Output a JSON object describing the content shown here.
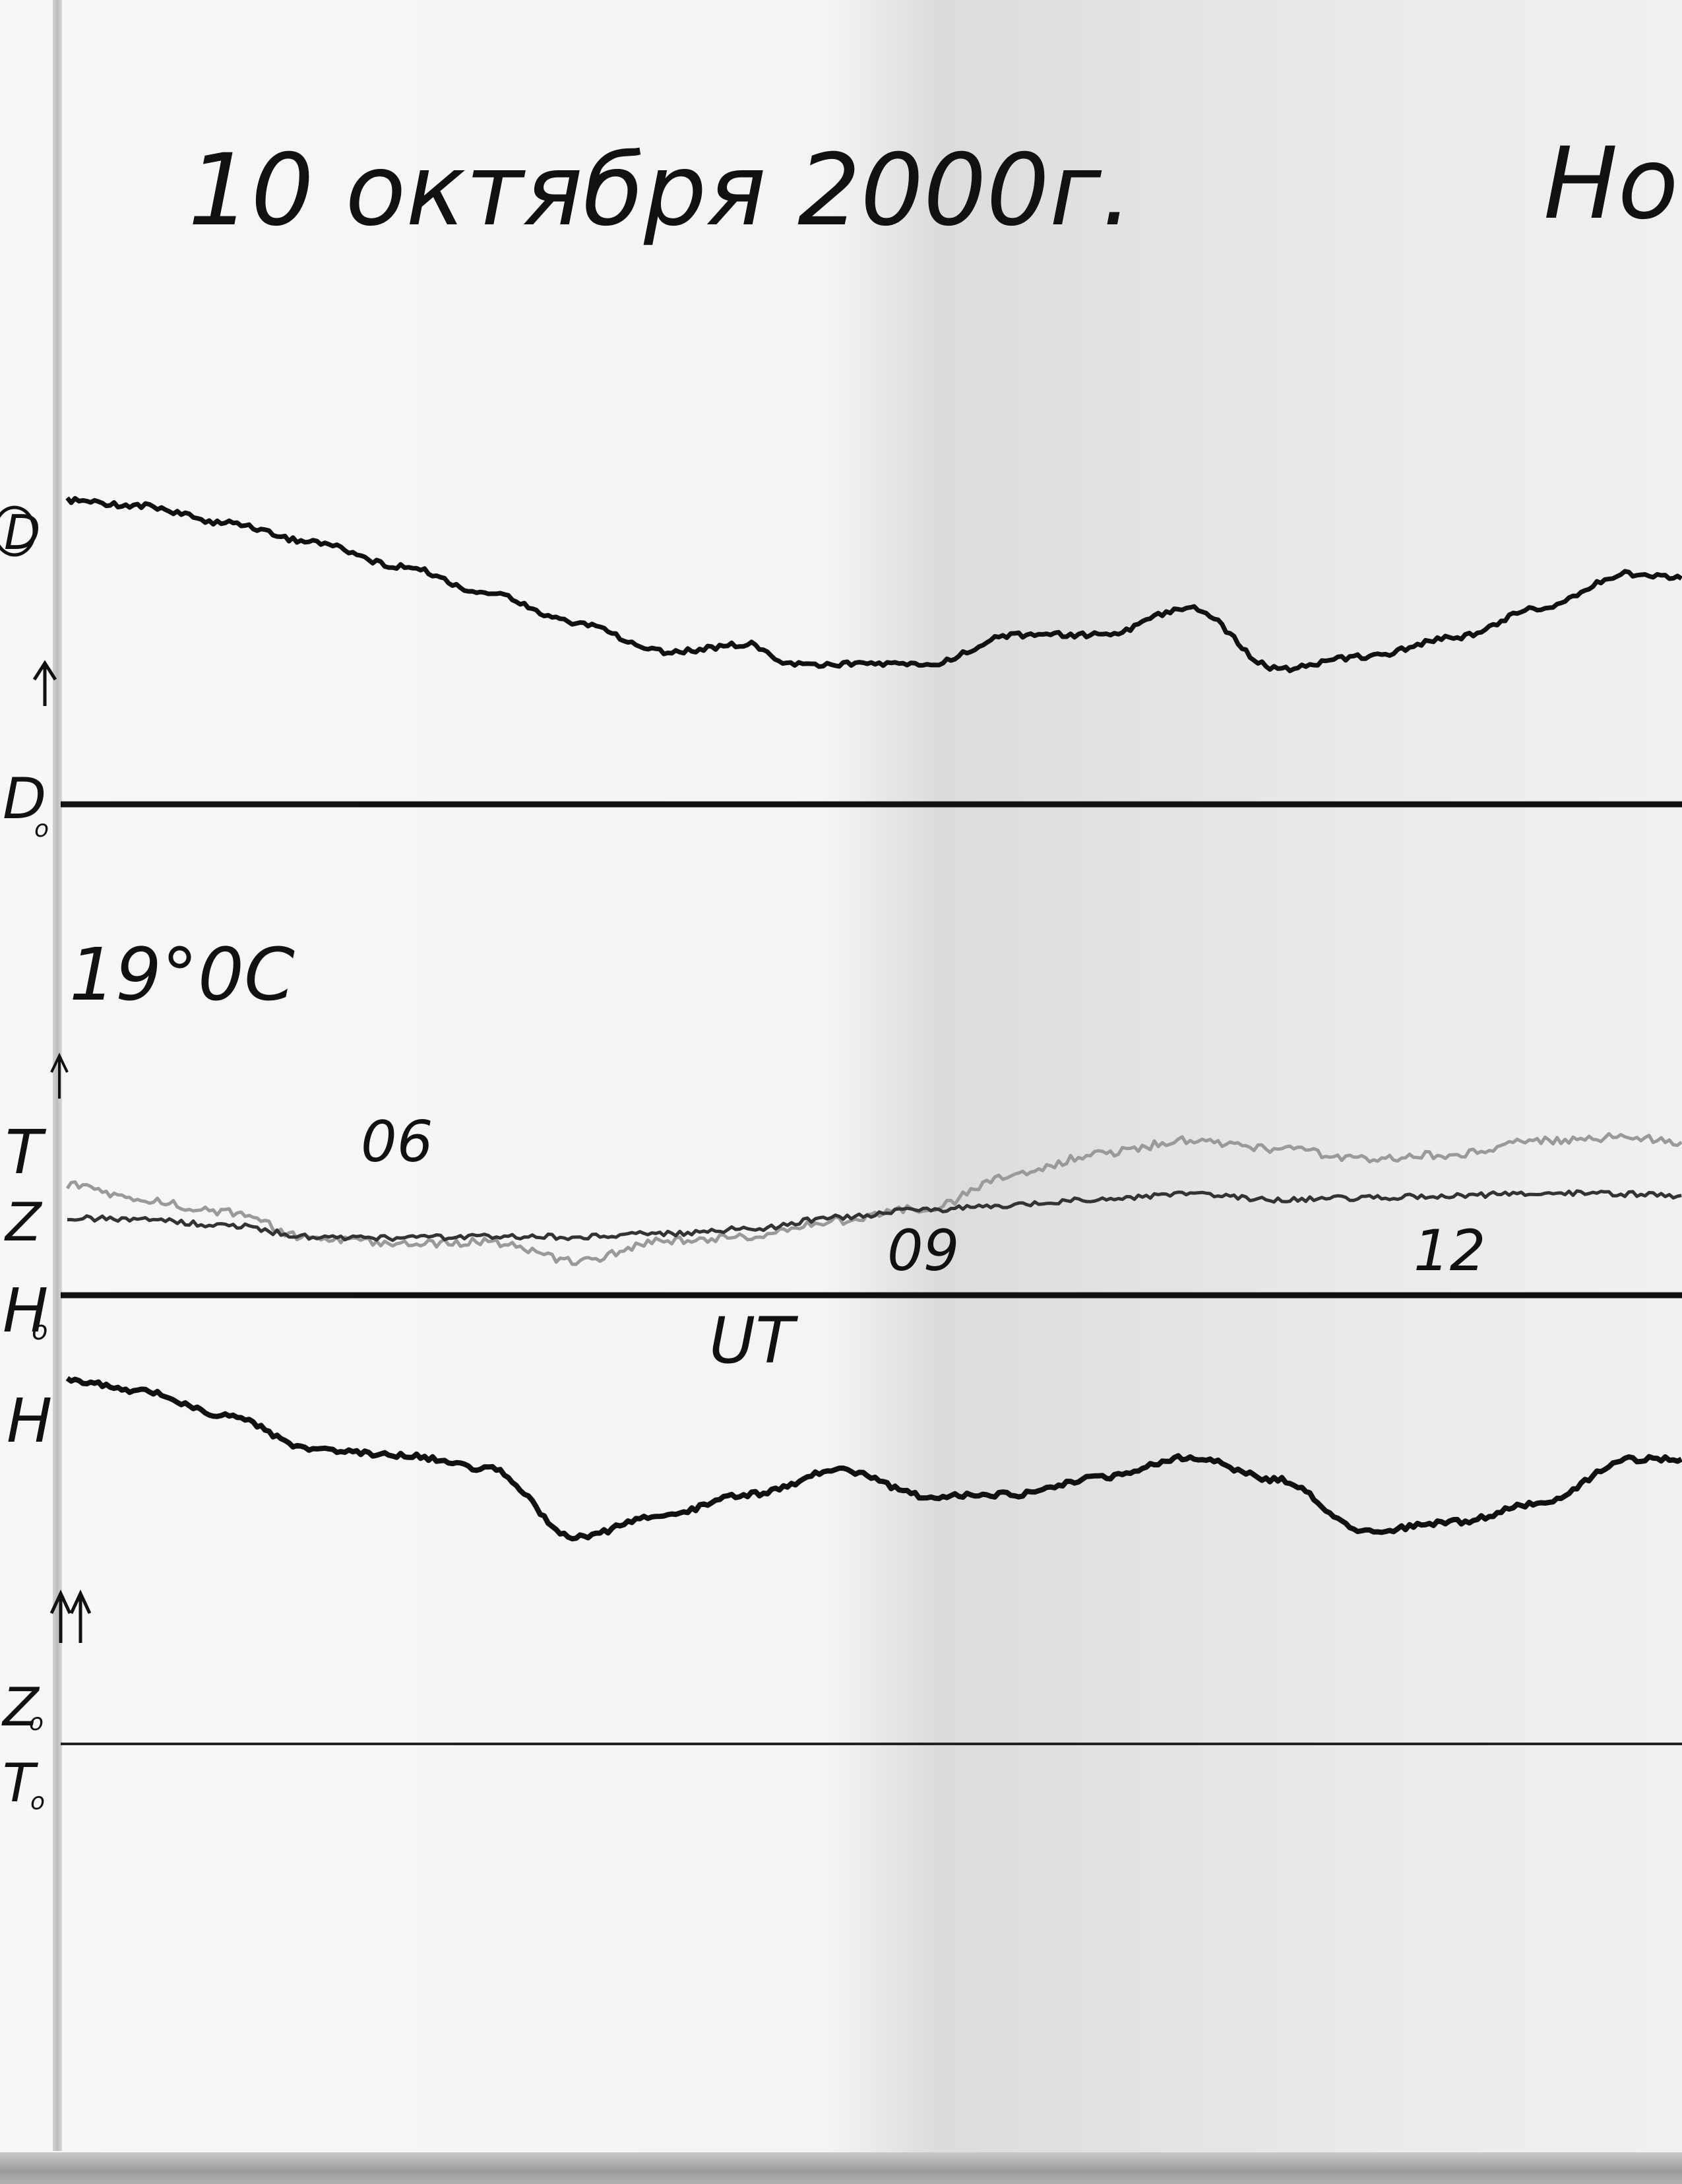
{
  "header": {
    "date": "10 октября 2000г.",
    "station": "Но"
  },
  "labels": {
    "d": "D",
    "d0": "D",
    "d0_sub": "o",
    "temperature": "19°0C",
    "t": "T",
    "z": "Z",
    "h0": "H",
    "h0_sub": "o",
    "h": "H",
    "z0": "Z",
    "z0_sub": "o",
    "t0": "T",
    "t0_sub": "o",
    "ut": "UT"
  },
  "chart_data": {
    "type": "line",
    "title": "10 октября 2000г.",
    "xlabel": "UT",
    "x_ticks": [
      {
        "label": "06",
        "hour": 6
      },
      {
        "label": "09",
        "hour": 9
      },
      {
        "label": "12",
        "hour": 12
      }
    ],
    "grid": false,
    "legend": "none",
    "series": [
      {
        "name": "D",
        "color": "#111111",
        "x": [
          4.1,
          4.5,
          5,
          5.5,
          6,
          6.5,
          7,
          7.5,
          8,
          8.2,
          8.5,
          9,
          9.5,
          10,
          10.5,
          11,
          11.5,
          12,
          12.5,
          13,
          13.3
        ],
        "y": [
          0.95,
          0.93,
          0.86,
          0.78,
          0.68,
          0.57,
          0.45,
          0.33,
          0.36,
          0.28,
          0.28,
          0.28,
          0.4,
          0.4,
          0.51,
          0.26,
          0.31,
          0.39,
          0.51,
          0.65,
          0.63
        ]
      },
      {
        "name": "T",
        "color": "#9a9a9a",
        "x": [
          4.1,
          4.5,
          5,
          5.5,
          6,
          6.5,
          7,
          7.5,
          8,
          8.5,
          9,
          9.5,
          10,
          10.5,
          11,
          11.5,
          12,
          12.5,
          13,
          13.3
        ],
        "y": [
          0.46,
          0.38,
          0.31,
          0.16,
          0.13,
          0.14,
          0.03,
          0.15,
          0.17,
          0.26,
          0.33,
          0.52,
          0.64,
          0.71,
          0.66,
          0.61,
          0.63,
          0.71,
          0.73,
          0.7
        ]
      },
      {
        "name": "Z",
        "color": "#333333",
        "x": [
          4.1,
          4.5,
          5,
          5.5,
          6,
          6.5,
          7,
          7.5,
          8,
          8.5,
          9,
          9.5,
          10,
          10.5,
          11,
          11.5,
          12,
          12.5,
          13,
          13.3
        ],
        "y": [
          0.3,
          0.29,
          0.24,
          0.14,
          0.13,
          0.15,
          0.14,
          0.17,
          0.21,
          0.31,
          0.37,
          0.41,
          0.46,
          0.5,
          0.45,
          0.47,
          0.49,
          0.51,
          0.5,
          0.49
        ]
      },
      {
        "name": "H",
        "color": "#111111",
        "x": [
          4.1,
          4.5,
          5,
          5.5,
          6,
          6.5,
          7,
          7.5,
          8,
          8.5,
          9,
          9.5,
          10,
          10.5,
          11,
          11.5,
          12,
          12.5,
          13,
          13.3
        ],
        "y": [
          0.96,
          0.9,
          0.77,
          0.58,
          0.55,
          0.48,
          0.11,
          0.23,
          0.34,
          0.47,
          0.33,
          0.34,
          0.43,
          0.54,
          0.42,
          0.14,
          0.19,
          0.29,
          0.53,
          0.53
        ]
      }
    ],
    "baselines": [
      "D₀",
      "H₀",
      "Z₀ / T₀"
    ]
  }
}
